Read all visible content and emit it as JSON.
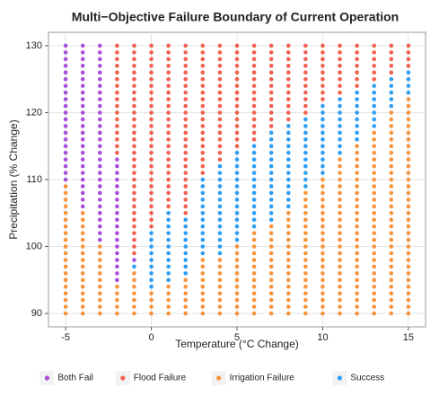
{
  "chart_data": {
    "type": "scatter",
    "title": "Multi−Objective Failure Boundary of Current Operation",
    "x_label": "Temperature (°C Change)",
    "y_label": "Precipitation (% Change)",
    "series": [
      {
        "name": "Both Fail",
        "color": "#a84fd8"
      },
      {
        "name": "Flood Failure",
        "color": "#f0614f"
      },
      {
        "name": "Irrigation Failure",
        "color": "#f6943f"
      },
      {
        "name": "Success",
        "color": "#2f9ef2"
      }
    ],
    "x": [
      -5,
      -4,
      -3,
      -2,
      -1,
      0,
      1,
      2,
      3,
      4,
      5,
      6,
      7,
      8,
      9,
      10,
      11,
      12,
      13,
      14,
      15
    ],
    "y": [
      90,
      91,
      92,
      93,
      94,
      95,
      96,
      97,
      98,
      99,
      100,
      101,
      102,
      103,
      104,
      105,
      106,
      107,
      108,
      109,
      110,
      111,
      112,
      113,
      114,
      115,
      116,
      117,
      118,
      119,
      120,
      121,
      122,
      123,
      124,
      125,
      126,
      127,
      128,
      129,
      130
    ],
    "values": [
      [
        2,
        2,
        2,
        2,
        2,
        2,
        2,
        2,
        2,
        2,
        2,
        2,
        2,
        2,
        2,
        2,
        2,
        2,
        2,
        2,
        0,
        0,
        0,
        0,
        0,
        0,
        0,
        0,
        0,
        0,
        0,
        0,
        0,
        0,
        0,
        0,
        0,
        0,
        0,
        0,
        0
      ],
      [
        2,
        2,
        2,
        2,
        2,
        2,
        2,
        2,
        2,
        2,
        2,
        2,
        2,
        2,
        2,
        2,
        0,
        0,
        0,
        0,
        0,
        0,
        0,
        0,
        0,
        0,
        0,
        0,
        0,
        0,
        0,
        0,
        0,
        0,
        0,
        0,
        0,
        0,
        0,
        0,
        0
      ],
      [
        2,
        2,
        2,
        2,
        2,
        2,
        2,
        2,
        2,
        2,
        2,
        0,
        0,
        0,
        0,
        0,
        0,
        0,
        0,
        0,
        0,
        0,
        0,
        0,
        0,
        0,
        0,
        0,
        0,
        0,
        0,
        0,
        0,
        0,
        0,
        0,
        0,
        0,
        0,
        0,
        0
      ],
      [
        2,
        2,
        2,
        2,
        2,
        0,
        0,
        0,
        0,
        0,
        0,
        0,
        0,
        0,
        0,
        0,
        0,
        0,
        0,
        0,
        0,
        0,
        0,
        0,
        1,
        1,
        1,
        1,
        1,
        1,
        1,
        1,
        1,
        1,
        1,
        1,
        1,
        1,
        1,
        1,
        1
      ],
      [
        2,
        2,
        2,
        2,
        2,
        2,
        2,
        3,
        0,
        1,
        1,
        1,
        1,
        1,
        1,
        1,
        1,
        1,
        1,
        1,
        1,
        1,
        1,
        1,
        1,
        1,
        1,
        1,
        1,
        1,
        1,
        1,
        1,
        1,
        1,
        1,
        1,
        1,
        1,
        1,
        1
      ],
      [
        2,
        2,
        2,
        2,
        3,
        3,
        3,
        3,
        3,
        3,
        3,
        3,
        3,
        1,
        1,
        1,
        1,
        1,
        1,
        1,
        1,
        1,
        1,
        1,
        1,
        1,
        1,
        1,
        1,
        1,
        1,
        1,
        1,
        1,
        1,
        1,
        1,
        1,
        1,
        1,
        1
      ],
      [
        2,
        2,
        2,
        2,
        2,
        3,
        3,
        3,
        3,
        3,
        3,
        3,
        3,
        3,
        3,
        3,
        1,
        1,
        1,
        1,
        1,
        1,
        1,
        1,
        1,
        1,
        1,
        1,
        1,
        1,
        1,
        1,
        1,
        1,
        1,
        1,
        1,
        1,
        1,
        1,
        1
      ],
      [
        2,
        2,
        2,
        2,
        2,
        2,
        3,
        3,
        3,
        3,
        3,
        3,
        3,
        3,
        3,
        1,
        1,
        1,
        1,
        1,
        1,
        1,
        1,
        1,
        1,
        1,
        1,
        1,
        1,
        1,
        1,
        1,
        1,
        1,
        1,
        1,
        1,
        1,
        1,
        1,
        1
      ],
      [
        2,
        2,
        2,
        2,
        2,
        2,
        2,
        2,
        2,
        3,
        3,
        3,
        3,
        3,
        3,
        3,
        3,
        3,
        3,
        3,
        3,
        1,
        1,
        1,
        1,
        1,
        1,
        1,
        1,
        1,
        1,
        1,
        1,
        1,
        1,
        1,
        1,
        1,
        1,
        1,
        1
      ],
      [
        2,
        2,
        2,
        2,
        2,
        2,
        2,
        2,
        2,
        3,
        3,
        3,
        3,
        3,
        3,
        3,
        3,
        3,
        3,
        3,
        3,
        3,
        3,
        1,
        1,
        1,
        1,
        1,
        1,
        1,
        1,
        1,
        1,
        1,
        1,
        1,
        1,
        1,
        1,
        1,
        1
      ],
      [
        2,
        2,
        2,
        2,
        2,
        2,
        2,
        2,
        2,
        2,
        2,
        3,
        3,
        3,
        3,
        3,
        3,
        3,
        3,
        3,
        3,
        3,
        3,
        3,
        3,
        1,
        1,
        1,
        1,
        1,
        1,
        1,
        1,
        1,
        1,
        1,
        1,
        1,
        1,
        1,
        1
      ],
      [
        2,
        2,
        2,
        2,
        2,
        2,
        2,
        2,
        2,
        2,
        2,
        2,
        2,
        3,
        3,
        3,
        3,
        3,
        3,
        3,
        3,
        3,
        3,
        3,
        3,
        3,
        1,
        1,
        1,
        1,
        1,
        1,
        1,
        1,
        1,
        1,
        1,
        1,
        1,
        1,
        1
      ],
      [
        2,
        2,
        2,
        2,
        2,
        2,
        2,
        2,
        2,
        2,
        2,
        2,
        2,
        2,
        3,
        3,
        3,
        3,
        3,
        3,
        3,
        3,
        3,
        3,
        3,
        3,
        3,
        3,
        1,
        1,
        1,
        1,
        1,
        1,
        1,
        1,
        1,
        1,
        1,
        1,
        1
      ],
      [
        2,
        2,
        2,
        2,
        2,
        2,
        2,
        2,
        2,
        2,
        2,
        2,
        2,
        2,
        2,
        2,
        3,
        3,
        3,
        3,
        3,
        3,
        3,
        3,
        3,
        3,
        3,
        3,
        3,
        1,
        1,
        1,
        1,
        1,
        1,
        1,
        1,
        1,
        1,
        1,
        1
      ],
      [
        2,
        2,
        2,
        2,
        2,
        2,
        2,
        2,
        2,
        2,
        2,
        2,
        2,
        2,
        2,
        2,
        2,
        2,
        2,
        3,
        3,
        3,
        3,
        3,
        3,
        3,
        3,
        3,
        3,
        3,
        1,
        1,
        1,
        1,
        1,
        1,
        1,
        1,
        1,
        1,
        1
      ],
      [
        2,
        2,
        2,
        2,
        2,
        2,
        2,
        2,
        2,
        2,
        2,
        2,
        2,
        2,
        2,
        2,
        2,
        2,
        2,
        2,
        2,
        3,
        3,
        3,
        3,
        3,
        3,
        3,
        3,
        3,
        3,
        3,
        1,
        1,
        1,
        1,
        1,
        1,
        1,
        1,
        1
      ],
      [
        2,
        2,
        2,
        2,
        2,
        2,
        2,
        2,
        2,
        2,
        2,
        2,
        2,
        2,
        2,
        2,
        2,
        2,
        2,
        2,
        2,
        2,
        2,
        2,
        3,
        3,
        3,
        3,
        3,
        3,
        3,
        3,
        3,
        1,
        1,
        1,
        1,
        1,
        1,
        1,
        1
      ],
      [
        2,
        2,
        2,
        2,
        2,
        2,
        2,
        2,
        2,
        2,
        2,
        2,
        2,
        2,
        2,
        2,
        2,
        2,
        2,
        2,
        2,
        2,
        2,
        2,
        2,
        2,
        3,
        3,
        3,
        3,
        3,
        3,
        3,
        3,
        1,
        1,
        1,
        1,
        1,
        1,
        1
      ],
      [
        2,
        2,
        2,
        2,
        2,
        2,
        2,
        2,
        2,
        2,
        2,
        2,
        2,
        2,
        2,
        2,
        2,
        2,
        2,
        2,
        2,
        2,
        2,
        2,
        2,
        2,
        2,
        2,
        3,
        3,
        3,
        3,
        3,
        3,
        3,
        1,
        1,
        1,
        1,
        1,
        1
      ],
      [
        2,
        2,
        2,
        2,
        2,
        2,
        2,
        2,
        2,
        2,
        2,
        2,
        2,
        2,
        2,
        2,
        2,
        2,
        2,
        2,
        2,
        2,
        2,
        2,
        2,
        2,
        2,
        2,
        2,
        2,
        2,
        3,
        3,
        3,
        3,
        3,
        1,
        1,
        1,
        1,
        1
      ],
      [
        2,
        2,
        2,
        2,
        2,
        2,
        2,
        2,
        2,
        2,
        2,
        2,
        2,
        2,
        2,
        2,
        2,
        2,
        2,
        2,
        2,
        2,
        2,
        2,
        2,
        2,
        2,
        2,
        2,
        2,
        2,
        2,
        2,
        3,
        3,
        3,
        3,
        1,
        1,
        1,
        1
      ]
    ],
    "xlim": [
      -6,
      16
    ],
    "ylim": [
      88,
      132
    ],
    "xticks": [
      -5,
      0,
      5,
      10,
      15
    ],
    "yticks": [
      90,
      100,
      110,
      120,
      130
    ],
    "grid": true,
    "legend": "bottom"
  }
}
